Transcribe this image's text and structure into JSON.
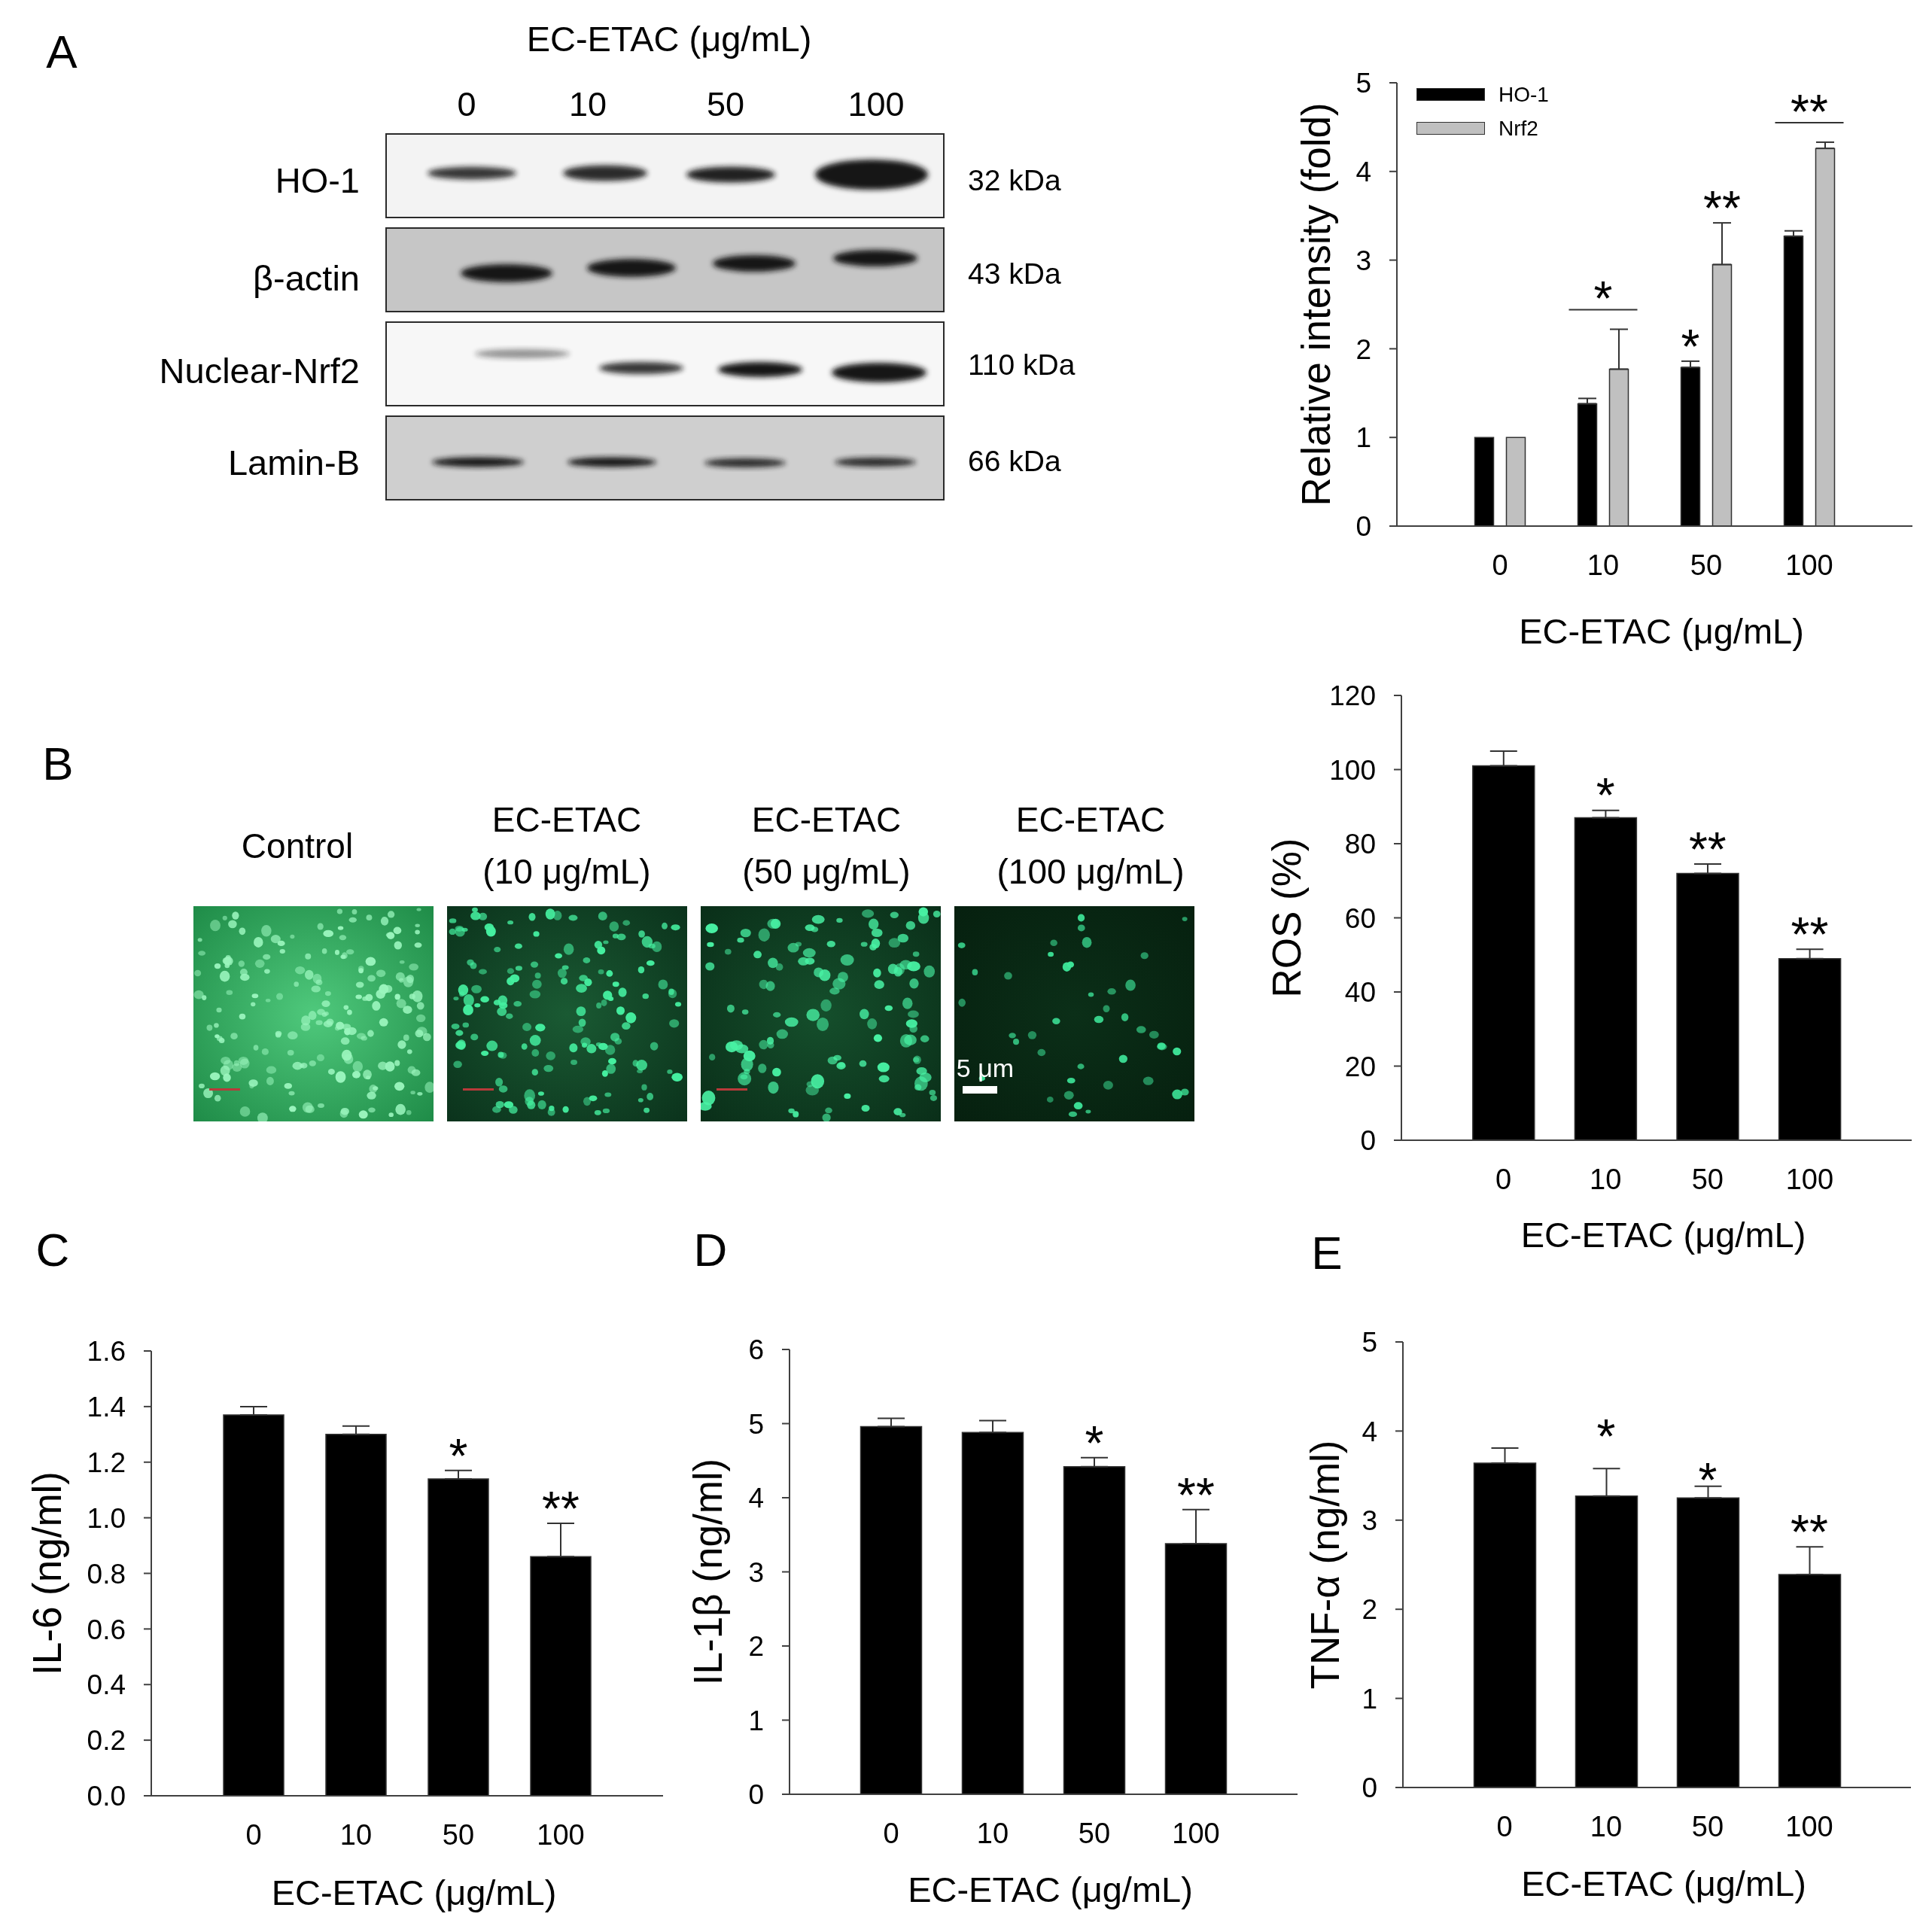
{
  "chart_data": [
    {
      "type": "other",
      "annotations": [
        "A"
      ],
      "title": "EC-ETAC (μg/mL)",
      "categories": [
        "0",
        "10",
        "50",
        "100"
      ],
      "y_categories": [
        "HO-1",
        "β-actin",
        "Nuclear-Nrf2",
        "Lamin-B"
      ],
      "y2_categories": [
        "32 kDa",
        "43 kDa",
        "110 kDa",
        "66 kDa"
      ]
    },
    {
      "type": "bar",
      "categories": [
        "0",
        "10",
        "50",
        "100"
      ],
      "xlabel": "EC-ETAC (μg/mL)",
      "ylabel": "Relative intensity (fold)",
      "ylim": [
        0,
        5
      ],
      "yticks": [
        0,
        1,
        2,
        3,
        4,
        5
      ],
      "legend": "top left",
      "series": [
        {
          "name": "HO-1",
          "color": "#000000",
          "values": [
            1.0,
            1.38,
            1.79,
            3.27
          ],
          "errors": [
            null,
            [
              1.38,
              1.44
            ],
            [
              1.79,
              1.86
            ],
            [
              3.27,
              3.33
            ]
          ]
        },
        {
          "name": "Nrf2",
          "color": "#c0c0c0",
          "values": [
            1.0,
            1.77,
            2.95,
            4.26
          ],
          "errors": [
            null,
            [
              1.77,
              2.22
            ],
            [
              2.95,
              3.42
            ],
            [
              4.26,
              4.33
            ]
          ]
        }
      ],
      "annotations": [
        "*",
        "*",
        "**",
        "**"
      ]
    },
    {
      "type": "other",
      "annotations": [
        "B",
        "5 μm"
      ],
      "categories": [
        "Control",
        "EC-ETAC (10 μg/mL)",
        "EC-ETAC (50 μg/mL)",
        "EC-ETAC (100 μg/mL)"
      ]
    },
    {
      "type": "bar",
      "categories": [
        "0",
        "10",
        "50",
        "100"
      ],
      "xlabel": "EC-ETAC (μg/mL)",
      "ylabel": "ROS (%)",
      "ylim": [
        0,
        120
      ],
      "yticks": [
        0,
        20,
        40,
        60,
        80,
        100,
        120
      ],
      "color": "#000000",
      "values": [
        101,
        87,
        72,
        49
      ],
      "errors": [
        [
          101,
          105
        ],
        [
          87,
          89
        ],
        [
          72,
          74.5
        ],
        [
          49,
          51.5
        ]
      ],
      "annotations": [
        {
          "text": "*",
          "x": "10",
          "y": 87
        },
        {
          "text": "**",
          "x": "50",
          "y": 72
        },
        {
          "text": "**",
          "x": "100",
          "y": 49
        }
      ]
    },
    {
      "type": "bar",
      "categories": [
        "0",
        "10",
        "50",
        "100"
      ],
      "xlabel": "EC-ETAC (μg/mL)",
      "ylabel": "IL-6 (ng/ml)",
      "ylim": [
        0,
        1.6
      ],
      "yticks": [
        {
          "value": 0,
          "label": "0.0"
        },
        0.2,
        0.4,
        0.6,
        0.8,
        {
          "value": 1,
          "label": "1.0"
        },
        1.2,
        1.4,
        1.6
      ],
      "color": "#000000",
      "values": [
        1.37,
        1.3,
        1.14,
        0.86
      ],
      "errors": [
        [
          1.37,
          1.4
        ],
        [
          1.3,
          1.33
        ],
        [
          1.14,
          1.17
        ],
        [
          0.86,
          0.98
        ]
      ],
      "annotations": [
        "C",
        {
          "text": "*",
          "x": "50",
          "y": 1.14
        },
        {
          "text": "**",
          "x": "100",
          "y": 0.86
        }
      ]
    },
    {
      "type": "bar",
      "categories": [
        "0",
        "10",
        "50",
        "100"
      ],
      "xlabel": "EC-ETAC (μg/mL)",
      "ylabel": "IL-1β (ng/ml)",
      "ylim": [
        0,
        6
      ],
      "yticks": [
        0,
        1,
        2,
        3,
        4,
        5,
        6
      ],
      "color": "#000000",
      "values": [
        4.96,
        4.88,
        4.42,
        3.38
      ],
      "errors": [
        [
          4.96,
          5.07
        ],
        [
          4.88,
          5.04
        ],
        [
          4.42,
          4.54
        ],
        [
          3.38,
          3.84
        ]
      ],
      "annotations": [
        "D",
        {
          "text": "*",
          "x": "50",
          "y": 4.42
        },
        {
          "text": "**",
          "x": "100",
          "y": 3.38
        }
      ]
    },
    {
      "type": "bar",
      "categories": [
        "0",
        "10",
        "50",
        "100"
      ],
      "xlabel": "EC-ETAC (μg/mL)",
      "ylabel": "TNF-α (ng/ml)",
      "ylim": [
        0,
        5
      ],
      "yticks": [
        0,
        1,
        2,
        3,
        4,
        5
      ],
      "color": "#000000",
      "values": [
        3.64,
        3.27,
        3.25,
        2.39
      ],
      "errors": [
        [
          3.64,
          3.81
        ],
        [
          3.27,
          3.58
        ],
        [
          3.25,
          3.38
        ],
        [
          2.39,
          2.7
        ]
      ],
      "annotations": [
        "E",
        {
          "text": "*",
          "x": "10",
          "y": 3.27
        },
        {
          "text": "*",
          "x": "50",
          "y": 3.25
        },
        {
          "text": "**",
          "x": "100",
          "y": 2.39
        }
      ]
    }
  ]
}
